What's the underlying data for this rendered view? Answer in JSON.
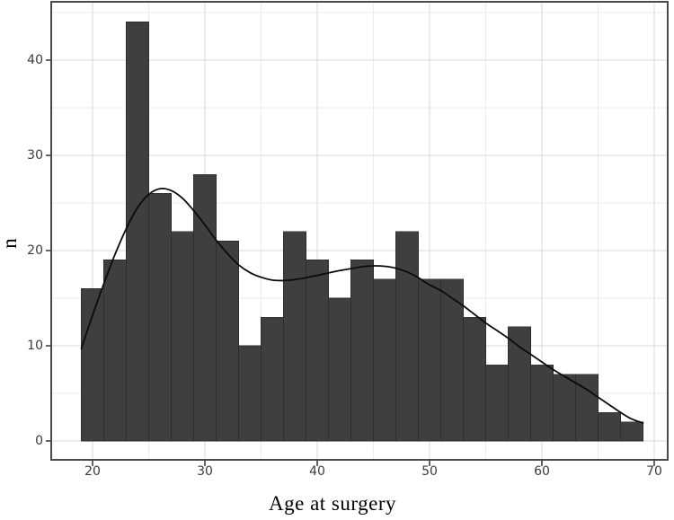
{
  "chart_data": {
    "type": "histogram",
    "overlay": "density_curve",
    "title": "",
    "xlabel": "Age at surgery",
    "ylabel": "n",
    "x_ticks": [
      20,
      30,
      40,
      50,
      60,
      70
    ],
    "y_ticks": [
      0,
      10,
      20,
      30,
      40
    ],
    "x_minor_gridlines": [
      25,
      35,
      45,
      55,
      65
    ],
    "y_minor_gridlines": [
      5,
      15,
      25,
      35,
      45
    ],
    "xlim": [
      16.32,
      71.2
    ],
    "ylim": [
      -1.98,
      46.13
    ],
    "grid": true,
    "legend": false,
    "bins": {
      "start": 19,
      "bin_width": 2,
      "counts": [
        16,
        19,
        44,
        26,
        22,
        28,
        21,
        10,
        13,
        22,
        19,
        15,
        19,
        17,
        22,
        17,
        17,
        13,
        8,
        12,
        8,
        7,
        7,
        3,
        2
      ]
    },
    "density_curve": {
      "x_start": 19,
      "x_step": 1,
      "y": [
        9.7,
        13.2,
        16.5,
        19.6,
        22.3,
        24.5,
        25.9,
        26.5,
        26.3,
        25.5,
        24.2,
        22.7,
        21.1,
        19.7,
        18.5,
        17.7,
        17.2,
        16.9,
        16.85,
        16.95,
        17.15,
        17.4,
        17.65,
        17.9,
        18.1,
        18.3,
        18.4,
        18.35,
        18.15,
        17.75,
        17.15,
        16.4,
        15.8,
        15.0,
        14.2,
        13.3,
        12.4,
        11.6,
        10.8,
        9.9,
        9.1,
        8.3,
        7.5,
        6.8,
        6.1,
        5.4,
        4.6,
        3.8,
        3.0,
        2.3,
        1.9
      ]
    },
    "colors": {
      "bar_fill": "#3f3f3f",
      "bar_edge": "#2e2e2e",
      "curve": "#0b0b0b",
      "grid_major": "#d7d7d7",
      "grid_minor": "#ebebeb",
      "panel_border": "#4a4a4a",
      "tick_mark": "#333333",
      "tick_label": "#3c3c3c",
      "axis_title": "#000000",
      "background": "#ffffff"
    }
  }
}
